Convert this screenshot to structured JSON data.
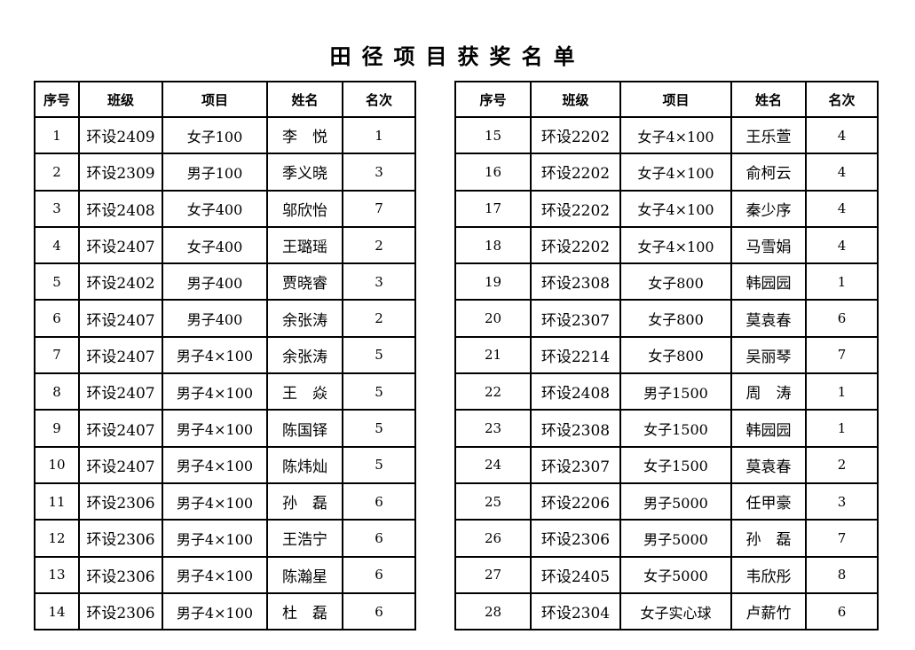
{
  "title": "田径项目获奖名单",
  "headers": [
    "序号",
    "班级",
    "项目",
    "姓名",
    "名次"
  ],
  "left_rows": [
    [
      "1",
      "环设2409",
      "女子100",
      "李　悦",
      "1"
    ],
    [
      "2",
      "环设2309",
      "男子100",
      "季义晓",
      "3"
    ],
    [
      "3",
      "环设2408",
      "女子400",
      "邬欣怡",
      "7"
    ],
    [
      "4",
      "环设2407",
      "女子400",
      "王璐瑶",
      "2"
    ],
    [
      "5",
      "环设2402",
      "男子400",
      "贾晓睿",
      "3"
    ],
    [
      "6",
      "环设2407",
      "男子400",
      "余张涛",
      "2"
    ],
    [
      "7",
      "环设2407",
      "男子4×100",
      "余张涛",
      "5"
    ],
    [
      "8",
      "环设2407",
      "男子4×100",
      "王　焱",
      "5"
    ],
    [
      "9",
      "环设2407",
      "男子4×100",
      "陈国铎",
      "5"
    ],
    [
      "10",
      "环设2407",
      "男子4×100",
      "陈炜灿",
      "5"
    ],
    [
      "11",
      "环设2306",
      "男子4×100",
      "孙　磊",
      "6"
    ],
    [
      "12",
      "环设2306",
      "男子4×100",
      "王浩宁",
      "6"
    ],
    [
      "13",
      "环设2306",
      "男子4×100",
      "陈瀚星",
      "6"
    ],
    [
      "14",
      "环设2306",
      "男子4×100",
      "杜　磊",
      "6"
    ]
  ],
  "right_rows": [
    [
      "15",
      "环设2202",
      "女子4×100",
      "王乐萱",
      "4"
    ],
    [
      "16",
      "环设2202",
      "女子4×100",
      "俞柯云",
      "4"
    ],
    [
      "17",
      "环设2202",
      "女子4×100",
      "秦少序",
      "4"
    ],
    [
      "18",
      "环设2202",
      "女子4×100",
      "马雪娟",
      "4"
    ],
    [
      "19",
      "环设2308",
      "女子800",
      "韩园园",
      "1"
    ],
    [
      "20",
      "环设2307",
      "女子800",
      "莫袁春",
      "6"
    ],
    [
      "21",
      "环设2214",
      "女子800",
      "吴丽琴",
      "7"
    ],
    [
      "22",
      "环设2408",
      "男子1500",
      "周　涛",
      "1"
    ],
    [
      "23",
      "环设2308",
      "女子1500",
      "韩园园",
      "1"
    ],
    [
      "24",
      "环设2307",
      "女子1500",
      "莫袁春",
      "2"
    ],
    [
      "25",
      "环设2206",
      "男子5000",
      "任甲豪",
      "3"
    ],
    [
      "26",
      "环设2306",
      "男子5000",
      "孙　磊",
      "7"
    ],
    [
      "27",
      "环设2405",
      "女子5000",
      "韦欣彤",
      "8"
    ],
    [
      "28",
      "环设2304",
      "女子实心球",
      "卢薪竹",
      "6"
    ]
  ]
}
